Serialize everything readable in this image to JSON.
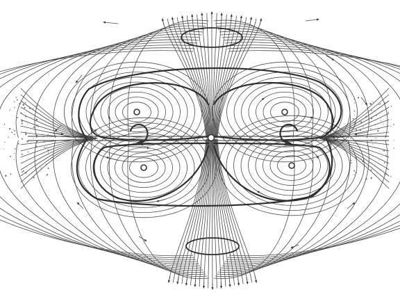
{
  "figure": {
    "colors": {
      "background": "#ffffff",
      "ink": "#3a3a3a",
      "ink_dark": "#2e2e2e"
    }
  }
}
